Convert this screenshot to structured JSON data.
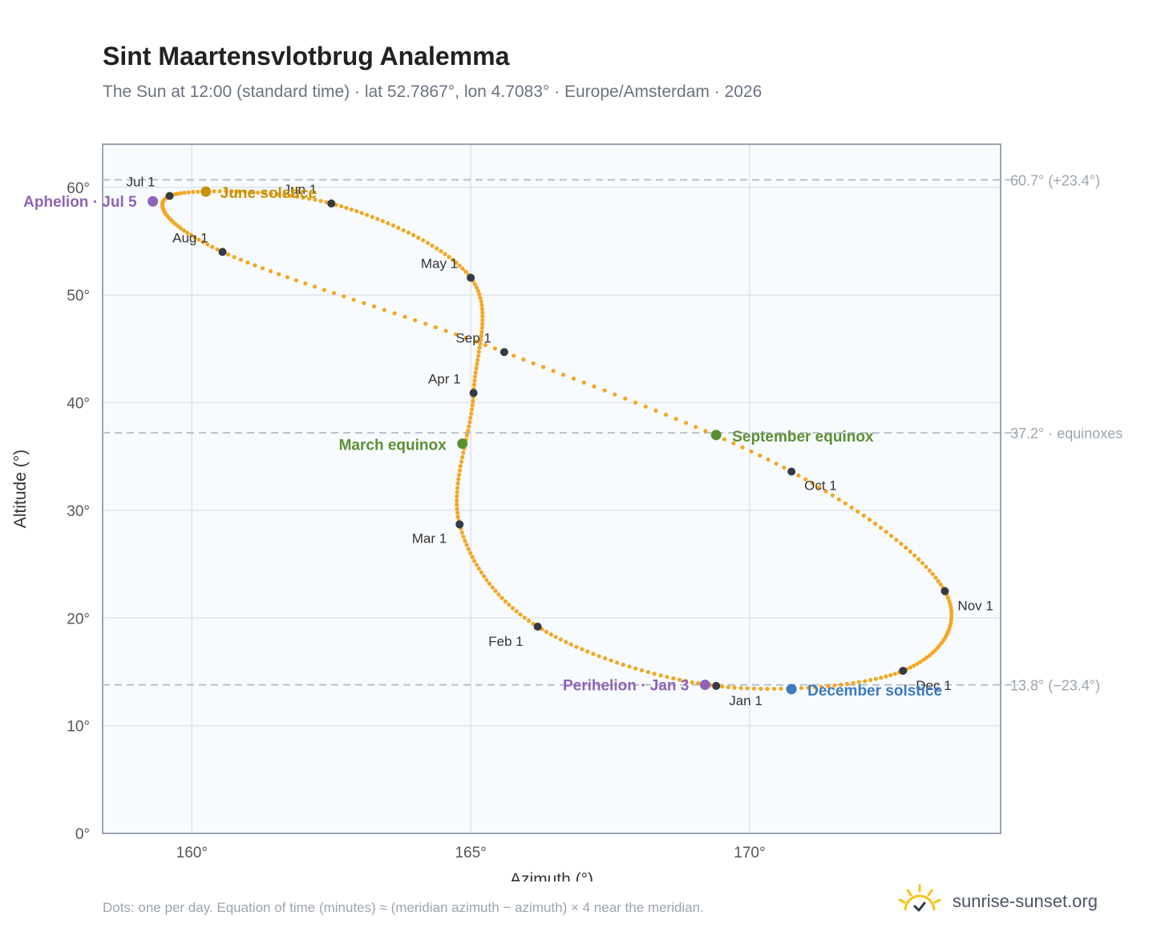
{
  "title": "Sint Maartensvlotbrug Analemma",
  "subtitle": "The Sun at 12:00 (standard time) · lat 52.7867°, lon 4.7083° · Europe/Amsterdam · 2026",
  "footnote": "Dots: one per day. Equation of time (minutes) ≈ (meridian azimuth − azimuth) × 4 near the meridian.",
  "brand": {
    "name": "sunrise-sunset.org",
    "icon": "sun-icon",
    "color": "#f5c518"
  },
  "colors": {
    "path": "#f5a623",
    "month_marker": "#333a45",
    "solstice_june": "#c8910a",
    "equinox": "#5a9032",
    "solstice_december": "#3a7abf",
    "apsis": "#8e63b5",
    "reference_line": "#b8c0cc",
    "plot_background": "#f8fbfe",
    "grid": "#dde4ec",
    "frame": "#9aa5b3"
  },
  "chart_data": {
    "type": "scatter",
    "title": "Sint Maartensvlotbrug Analemma",
    "xlabel": "Azimuth (°)",
    "ylabel": "Altitude (°)",
    "xlim": [
      158.4,
      174.5
    ],
    "ylim": [
      0,
      64
    ],
    "x_ticks": [
      160,
      165,
      170
    ],
    "x_tick_labels": [
      "160°",
      "165°",
      "170°"
    ],
    "y_ticks": [
      0,
      10,
      20,
      30,
      40,
      50,
      60
    ],
    "y_tick_labels": [
      "0°",
      "10°",
      "20°",
      "30°",
      "40°",
      "50°",
      "60°"
    ],
    "grid": true,
    "series": [
      {
        "marker": "one dot per day",
        "x": [
          169.4,
          166.2,
          164.8,
          165.05,
          165.0,
          162.5,
          159.6,
          160.55,
          165.6,
          170.75,
          173.5,
          172.75,
          169.4
        ],
        "y": [
          13.7,
          19.2,
          28.7,
          40.9,
          51.6,
          58.5,
          59.2,
          54.0,
          44.7,
          33.6,
          22.5,
          15.1,
          13.7
        ]
      }
    ],
    "month_markers": [
      {
        "label": "Jan 1",
        "x": 169.4,
        "y": 13.7
      },
      {
        "label": "Feb 1",
        "x": 166.2,
        "y": 19.2
      },
      {
        "label": "Mar 1",
        "x": 164.8,
        "y": 28.7
      },
      {
        "label": "Apr 1",
        "x": 165.05,
        "y": 40.9
      },
      {
        "label": "May 1",
        "x": 165.0,
        "y": 51.6
      },
      {
        "label": "Jun 1",
        "x": 162.5,
        "y": 58.5
      },
      {
        "label": "Jul 1",
        "x": 159.6,
        "y": 59.2
      },
      {
        "label": "Aug 1",
        "x": 160.55,
        "y": 54.0
      },
      {
        "label": "Sep 1",
        "x": 165.6,
        "y": 44.7
      },
      {
        "label": "Oct 1",
        "x": 170.75,
        "y": 33.6
      },
      {
        "label": "Nov 1",
        "x": 173.5,
        "y": 22.5
      },
      {
        "label": "Dec 1",
        "x": 172.75,
        "y": 15.1
      }
    ],
    "events": [
      {
        "label": "June solstice",
        "x": 160.25,
        "y": 59.6,
        "color_key": "solstice_june"
      },
      {
        "label": "Aphelion · Jul 5",
        "x": 159.3,
        "y": 58.7,
        "color_key": "apsis"
      },
      {
        "label": "March equinox",
        "x": 164.85,
        "y": 36.2,
        "color_key": "equinox"
      },
      {
        "label": "September equinox",
        "x": 169.4,
        "y": 37.0,
        "color_key": "equinox"
      },
      {
        "label": "Perihelion · Jan 3",
        "x": 169.2,
        "y": 13.8,
        "color_key": "apsis"
      },
      {
        "label": "December solstice",
        "x": 170.75,
        "y": 13.4,
        "color_key": "solstice_december"
      }
    ],
    "reference_lines": [
      {
        "y": 60.7,
        "label": "60.7° (+23.4°)"
      },
      {
        "y": 37.2,
        "label": "37.2° · equinoxes"
      },
      {
        "y": 13.8,
        "label": "13.8° (−23.4°)"
      }
    ]
  }
}
